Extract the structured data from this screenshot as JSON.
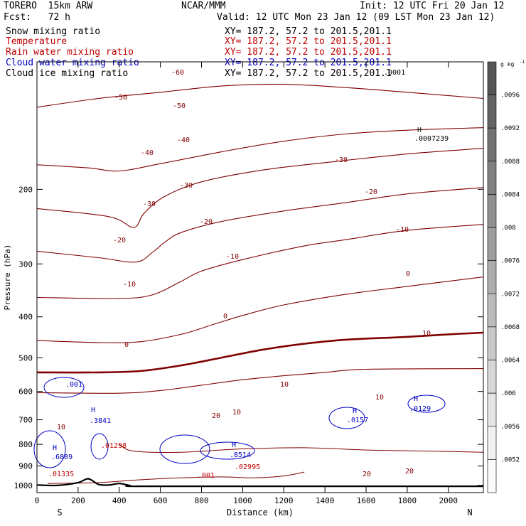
{
  "header": {
    "model": "TORERO  15km ARW",
    "center": "NCAR/MMM",
    "init": "Init: 12 UTC Fri 20 Jan 12",
    "fcst": "Fcst:   72 h",
    "valid": "Valid: 12 UTC Mon 23 Jan 12 (09 LST Mon 23 Jan 12)"
  },
  "fields": [
    {
      "label": "Snow mixing ratio",
      "xy": "",
      "color": "#000000"
    },
    {
      "label": "Temperature",
      "xy": "XY= 187.2, 57.2 to 201.5,201.1",
      "color": "#c00000"
    },
    {
      "label": "Rain water mixing ratio",
      "xy": "XY= 187.2, 57.2 to 201.5,201.1",
      "color": "#c00000"
    },
    {
      "label": "Cloud water mixing ratio",
      "xy": "XY= 187.2, 57.2 to 201.5,201.1",
      "color": "#0000c0"
    },
    {
      "label": "Cloud ice mixing ratio",
      "xy": "XY= 187.2, 57.2 to 201.5,201.1",
      "color": "#000000"
    }
  ],
  "snow_xy": "XY= 187.2, 57.2 to 201.5,201.1",
  "colorbar": {
    "unit": "g kg",
    "unit_exp": "-1",
    "ticks": [
      ".0096",
      ".0092",
      ".0088",
      ".0084",
      ".008",
      ".0076",
      ".0072",
      ".0068",
      ".0064",
      ".006",
      ".0056",
      ".0052"
    ],
    "fills": [
      "#555555",
      "#636363",
      "#727272",
      "#818181",
      "#8f8f8f",
      "#9e9e9e",
      "#acacac",
      "#bbbbbb",
      "#c9c9c9",
      "#d7d7d7",
      "#e4e4e4",
      "#f1f1f1",
      "#fafafa"
    ]
  },
  "axes": {
    "ylabel": "Pressure (hPa)",
    "xlabel": "Distance (km)",
    "south": "S",
    "north": "N"
  },
  "annotations": {
    "ice_max_label": "H",
    "ice_max_value": ".0007239",
    "ice_top_value": ".0001"
  },
  "chart_data": {
    "type": "contour",
    "x_range_km": [
      0,
      2170
    ],
    "y_range_hpa": [
      100,
      1040
    ],
    "y_scale": "log",
    "x_ticks": [
      0,
      200,
      400,
      600,
      800,
      1000,
      1200,
      1400,
      1600,
      1800,
      2000
    ],
    "y_ticks": [
      200,
      300,
      400,
      500,
      600,
      700,
      800,
      900,
      1000
    ],
    "temperature_isotherms_C": [
      {
        "level": -60,
        "points": [
          [
            0,
            128
          ],
          [
            300,
            122
          ],
          [
            600,
            118
          ],
          [
            900,
            114
          ],
          [
            1200,
            113
          ],
          [
            1500,
            115
          ],
          [
            1800,
            118
          ],
          [
            2170,
            122
          ]
        ]
      },
      {
        "level": -50,
        "points": [
          [
            0,
            175
          ],
          [
            250,
            178
          ],
          [
            400,
            181
          ],
          [
            600,
            174
          ],
          [
            900,
            163
          ],
          [
            1200,
            154
          ],
          [
            1500,
            148
          ],
          [
            1800,
            145
          ],
          [
            2170,
            143
          ]
        ]
      },
      {
        "level": -40,
        "points": [
          [
            0,
            222
          ],
          [
            350,
            232
          ],
          [
            470,
            246
          ],
          [
            520,
            228
          ],
          [
            620,
            208
          ],
          [
            800,
            192
          ],
          [
            1100,
            180
          ],
          [
            1400,
            173
          ],
          [
            1800,
            165
          ],
          [
            2170,
            160
          ]
        ]
      },
      {
        "level": -30,
        "points": [
          [
            0,
            280
          ],
          [
            300,
            290
          ],
          [
            480,
            297
          ],
          [
            560,
            282
          ],
          [
            620,
            267
          ],
          [
            700,
            253
          ],
          [
            900,
            238
          ],
          [
            1200,
            225
          ],
          [
            1500,
            215
          ],
          [
            1800,
            205
          ],
          [
            2170,
            198
          ]
        ]
      },
      {
        "level": -20,
        "points": [
          [
            0,
            360
          ],
          [
            400,
            362
          ],
          [
            560,
            355
          ],
          [
            700,
            330
          ],
          [
            800,
            312
          ],
          [
            1000,
            293
          ],
          [
            1300,
            272
          ],
          [
            1500,
            263
          ],
          [
            1800,
            250
          ],
          [
            2170,
            242
          ]
        ]
      },
      {
        "level": -10,
        "points": [
          [
            0,
            455
          ],
          [
            300,
            460
          ],
          [
            500,
            458
          ],
          [
            700,
            440
          ],
          [
            850,
            418
          ],
          [
            1000,
            397
          ],
          [
            1200,
            375
          ],
          [
            1500,
            354
          ],
          [
            1800,
            339
          ],
          [
            2170,
            322
          ]
        ]
      },
      {
        "level": 0,
        "points": [
          [
            0,
            541
          ],
          [
            300,
            541
          ],
          [
            500,
            537
          ],
          [
            700,
            521
          ],
          [
            900,
            499
          ],
          [
            1100,
            478
          ],
          [
            1300,
            463
          ],
          [
            1500,
            453
          ],
          [
            1800,
            446
          ],
          [
            2000,
            440
          ],
          [
            2170,
            436
          ]
        ]
      },
      {
        "level": 10,
        "points": [
          [
            0,
            604
          ],
          [
            400,
            606
          ],
          [
            600,
            597
          ],
          [
            800,
            580
          ],
          [
            1000,
            563
          ],
          [
            1200,
            551
          ],
          [
            1400,
            541
          ],
          [
            1600,
            532
          ],
          [
            2170,
            530
          ]
        ]
      }
    ],
    "surface_pressure_hpa": [
      [
        0,
        998
      ],
      [
        100,
        1000
      ],
      [
        200,
        985
      ],
      [
        250,
        965
      ],
      [
        300,
        995
      ],
      [
        350,
        998
      ],
      [
        400,
        990
      ],
      [
        450,
        1000
      ],
      [
        500,
        1005
      ],
      [
        1200,
        1005
      ],
      [
        2170,
        1005
      ]
    ],
    "cloud_water_max": [
      ".6889",
      ".3841",
      ".8514",
      ".0157",
      ".0129"
    ],
    "rain_water_max": [
      ".01335",
      ".01298",
      ".02995",
      ".001"
    ],
    "cloud_water_contour": ".001"
  }
}
